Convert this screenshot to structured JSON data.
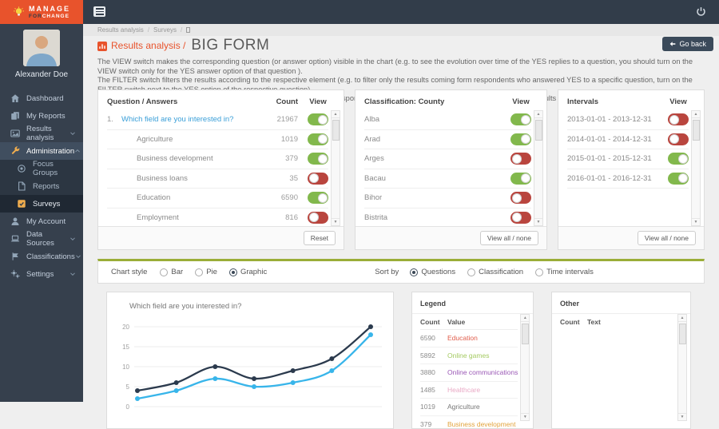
{
  "brand": {
    "line1": "MANAGE",
    "line2_for": "FOR",
    "line2_change": "CHANGE",
    "accent_color": "#e8532c"
  },
  "user": {
    "name": "Alexander Doe"
  },
  "sidebar": {
    "items": [
      {
        "label": "Dashboard",
        "icon": "home"
      },
      {
        "label": "My Reports",
        "icon": "copy"
      },
      {
        "label": "Results analysis",
        "icon": "picture-chart",
        "chevron": "down"
      },
      {
        "label": "Administration",
        "icon": "wrench",
        "chevron": "up",
        "active": true,
        "icon_color": "#f0ad4e"
      },
      {
        "label": "Focus Groups",
        "icon": "target",
        "sub": true
      },
      {
        "label": "Reports",
        "icon": "file",
        "sub": true
      },
      {
        "label": "Surveys",
        "icon": "check-square",
        "sub": true,
        "selected": true,
        "icon_color": "#f0ad4e"
      },
      {
        "label": "My Account",
        "icon": "user"
      },
      {
        "label": "Data Sources",
        "icon": "laptop",
        "chevron": "down"
      },
      {
        "label": "Classifications",
        "icon": "flag",
        "chevron": "down"
      },
      {
        "label": "Settings",
        "icon": "gears",
        "chevron": "down"
      }
    ]
  },
  "breadcrumb": {
    "items": [
      "Results analysis",
      "Surveys"
    ]
  },
  "page": {
    "title_prefix": "Results analysis /",
    "title": "BIG FORM",
    "go_back_label": "Go back",
    "description_lines": [
      "The VIEW switch makes the corresponding question (or answer option) visible in the chart (e.g. to see the evolution over time of the YES replies to a question, you should turn on the VIEW switch only for the YES answer option of that question ).",
      "The FILTER switch filters the results according to the respective element (e.g. to filter only the results coming form respondents who answered YES to a specific question, turn on the FILTER switch next to the YES option of the respective question).",
      "Similarly, the FILTER switch allows to visualize only results coming from respondents who meet specific classification criteria, or only results from specific time intervals."
    ]
  },
  "toggle_colors": {
    "on": "#82b84c",
    "off": "#b9453e"
  },
  "panels": {
    "questions": {
      "title": "Question / Answers",
      "col_count": "Count",
      "col_view": "View",
      "reset_label": "Reset",
      "rows": [
        {
          "num": "1.",
          "label": "Which field are you interested in?",
          "count": "21967",
          "on": true,
          "link": true
        },
        {
          "label": "Agriculture",
          "count": "1019",
          "on": true,
          "indent": true
        },
        {
          "label": "Business development",
          "count": "379",
          "on": true,
          "indent": true
        },
        {
          "label": "Business loans",
          "count": "35",
          "on": false,
          "indent": true
        },
        {
          "label": "Education",
          "count": "6590",
          "on": true,
          "indent": true
        },
        {
          "label": "Employment",
          "count": "816",
          "on": false,
          "indent": true
        }
      ]
    },
    "county": {
      "title": "Classification: County",
      "col_view": "View",
      "footer_label": "View all / none",
      "rows": [
        {
          "label": "Alba",
          "on": true
        },
        {
          "label": "Arad",
          "on": true
        },
        {
          "label": "Arges",
          "on": false
        },
        {
          "label": "Bacau",
          "on": true
        },
        {
          "label": "Bihor",
          "on": false
        },
        {
          "label": "Bistrita",
          "on": false
        }
      ]
    },
    "intervals": {
      "title": "Intervals",
      "col_view": "View",
      "footer_label": "View all / none",
      "rows": [
        {
          "label": "2013-01-01 - 2013-12-31",
          "on": false
        },
        {
          "label": "2014-01-01 - 2014-12-31",
          "on": false
        },
        {
          "label": "2015-01-01 - 2015-12-31",
          "on": true
        },
        {
          "label": "2016-01-01 - 2016-12-31",
          "on": true
        }
      ]
    }
  },
  "controls": {
    "chart_style_label": "Chart style",
    "chart_style_options": [
      {
        "label": "Bar",
        "selected": false
      },
      {
        "label": "Pie",
        "selected": false
      },
      {
        "label": "Graphic",
        "selected": true
      }
    ],
    "sort_by_label": "Sort by",
    "sort_by_options": [
      {
        "label": "Questions",
        "selected": true
      },
      {
        "label": "Classification",
        "selected": false
      },
      {
        "label": "Time intervals",
        "selected": false
      }
    ]
  },
  "chart_data": {
    "type": "line",
    "title": "Which field are you interested in?",
    "x": [
      1,
      2,
      3,
      4,
      5,
      6,
      7
    ],
    "series": [
      {
        "name": "dark-series",
        "color": "#2b3a4d",
        "values": [
          4,
          6,
          10,
          7,
          9,
          12,
          20
        ]
      },
      {
        "name": "blue-series",
        "color": "#38b5ea",
        "values": [
          2,
          4,
          7,
          5,
          6,
          9,
          18
        ]
      }
    ],
    "ylim": [
      0,
      20
    ],
    "yticks": [
      0,
      5,
      10,
      15,
      20
    ],
    "grid": true,
    "legend_position": "none"
  },
  "legend_panel": {
    "title": "Legend",
    "col_count": "Count",
    "col_value": "Value",
    "rows": [
      {
        "count": "6590",
        "value": "Education",
        "color": "#e05c4a"
      },
      {
        "count": "5892",
        "value": "Online games",
        "color": "#a4ca61"
      },
      {
        "count": "3880",
        "value": "Online communications",
        "color": "#9b59b6"
      },
      {
        "count": "1485",
        "value": "Healthcare",
        "color": "#e9a9c5"
      },
      {
        "count": "1019",
        "value": "Agriculture",
        "color": "#777777"
      },
      {
        "count": "379",
        "value": "Business development",
        "color": "#e2a43d"
      }
    ]
  },
  "other_panel": {
    "title": "Other",
    "col_count": "Count",
    "col_text": "Text"
  }
}
